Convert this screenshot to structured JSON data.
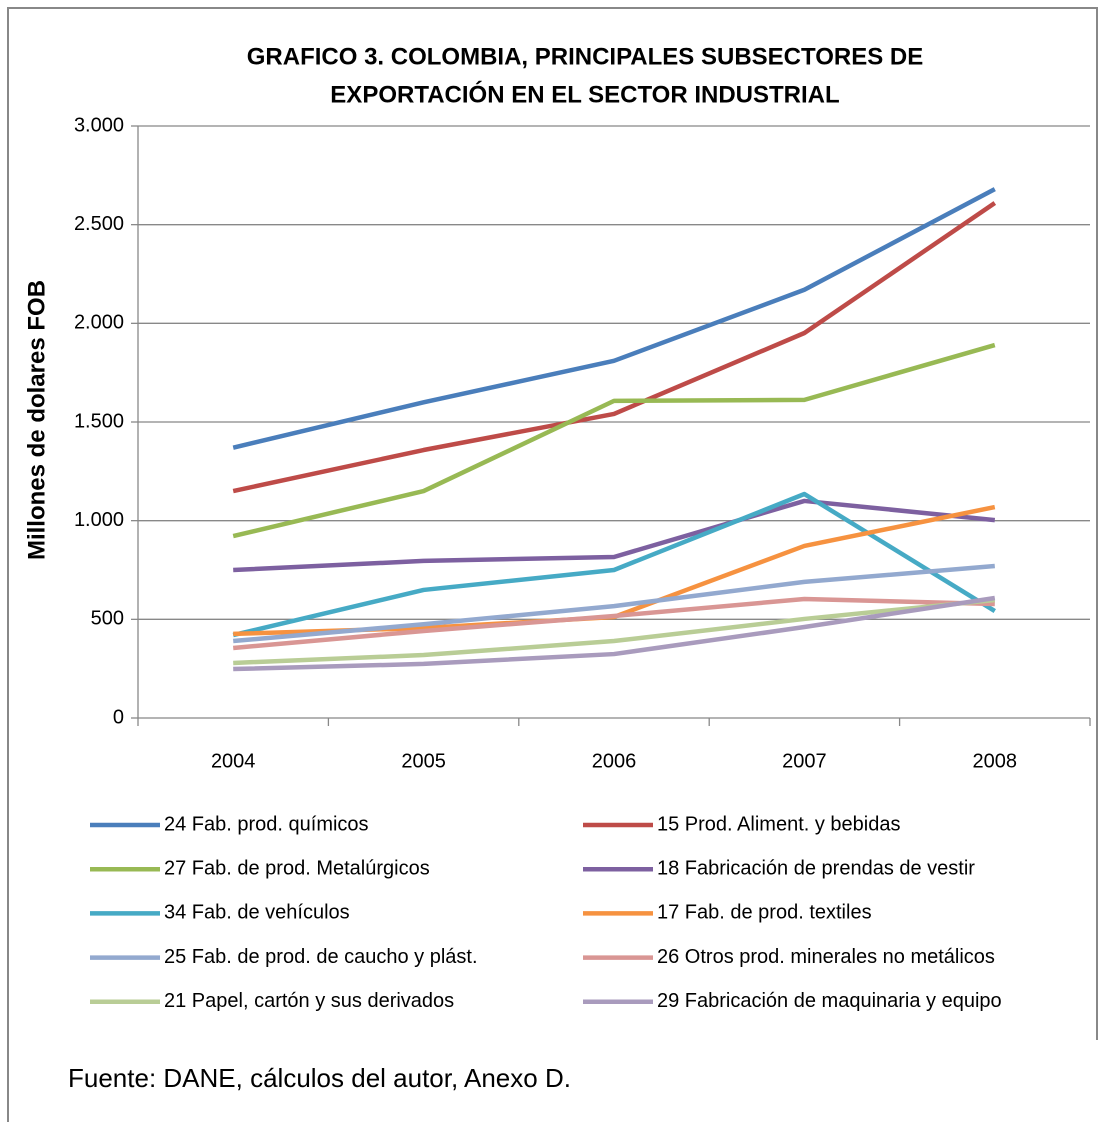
{
  "chart_data": {
    "type": "line",
    "title": [
      "GRAFICO 3. COLOMBIA, PRINCIPALES  SUBSECTORES DE",
      "EXPORTACIÓN EN EL SECTOR INDUSTRIAL"
    ],
    "y_label": "Millones de dolares FOB",
    "source": "Fuente: DANE, cálculos del autor, Anexo D.",
    "categories": [
      "2004",
      "2005",
      "2006",
      "2007",
      "2008"
    ],
    "ylim": [
      0,
      3000
    ],
    "yticks": [
      0,
      500,
      {
        "value": 1000,
        "label": "1.000"
      },
      {
        "value": 1500,
        "label": "1.500"
      },
      {
        "value": 2000,
        "label": "2.000"
      },
      {
        "value": 2500,
        "label": "2.500"
      },
      {
        "value": 3000,
        "label": "3.000"
      }
    ],
    "grid": true,
    "legend": "bottom",
    "series": [
      {
        "name": "24 Fab. prod. químicos",
        "color": "#4a7ebb",
        "values": [
          1370,
          1600,
          1810,
          2170,
          2680
        ]
      },
      {
        "name": "15 Prod. Aliment. y bebidas",
        "color": "#be4b48",
        "values": [
          1150,
          1358,
          1541,
          1951,
          2610
        ]
      },
      {
        "name": "27 Fab. de prod. Metalúrgicos",
        "color": "#98b954",
        "values": [
          922,
          1150,
          1607,
          1612,
          1890
        ]
      },
      {
        "name": "18 Fabricación de prendas de vestir",
        "color": "#7d60a0",
        "values": [
          750,
          796,
          816,
          1100,
          1003
        ]
      },
      {
        "name": "34 Fab. de vehículos",
        "color": "#46aac5",
        "values": [
          420,
          649,
          750,
          1135,
          542
        ]
      },
      {
        "name": "17 Fab. de prod. textiles",
        "color": "#f69240",
        "values": [
          426,
          456,
          512,
          872,
          1069
        ]
      },
      {
        "name": "25 Fab. de prod. de caucho y plást.",
        "color": "#93a9cf",
        "values": [
          390,
          475,
          567,
          690,
          770
        ]
      },
      {
        "name": "26 Otros  prod. minerales no metálicos",
        "color": "#d99694",
        "values": [
          355,
          441,
          517,
          603,
          578
        ]
      },
      {
        "name": "21 Papel, cartón y sus derivados",
        "color": "#b9cd96",
        "values": [
          279,
          319,
          390,
          502,
          598
        ]
      },
      {
        "name": "29 Fabricación de maquinaria y equipo",
        "color": "#a99bbd",
        "values": [
          248,
          274,
          324,
          461,
          608
        ]
      }
    ]
  }
}
